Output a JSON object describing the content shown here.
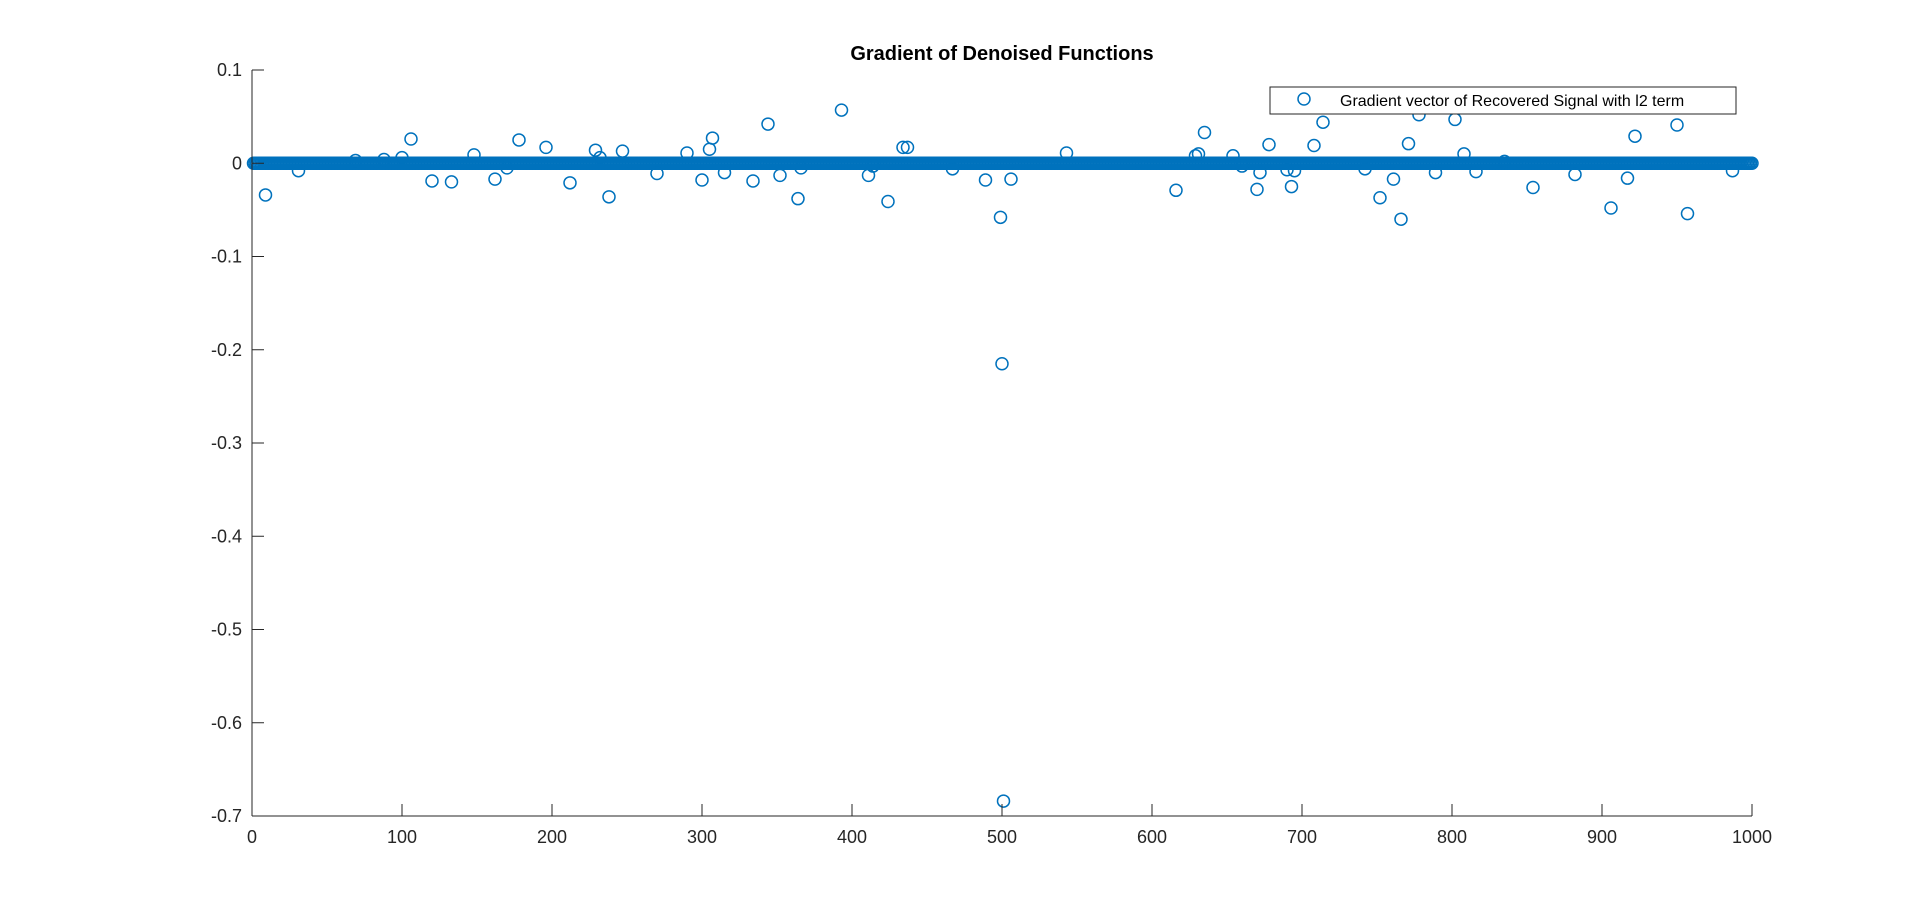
{
  "chart_data": {
    "type": "scatter",
    "title": "Gradient of Denoised Functions",
    "xlabel": "",
    "ylabel": "",
    "xlim": [
      0,
      1000
    ],
    "ylim": [
      -0.7,
      0.1
    ],
    "x_ticks": [
      0,
      100,
      200,
      300,
      400,
      500,
      600,
      700,
      800,
      900,
      1000
    ],
    "x_tick_labels": [
      "0",
      "100",
      "200",
      "300",
      "400",
      "500",
      "600",
      "700",
      "800",
      "900",
      "1000"
    ],
    "y_ticks": [
      0.1,
      0,
      -0.1,
      -0.2,
      -0.3,
      -0.4,
      -0.5,
      -0.6,
      -0.7
    ],
    "y_tick_labels": [
      "0.1",
      "0",
      "-0.1",
      "-0.2",
      "-0.3",
      "-0.4",
      "-0.5",
      "-0.6",
      "-0.7"
    ],
    "grid": false,
    "legend_position": "top-right",
    "marker": "open-circle",
    "series": [
      {
        "name": "Gradient vector of Recovered Signal with l2 term",
        "color": "#0072BD",
        "baseline": {
          "x_start": 1,
          "x_end": 1000,
          "y": 0
        },
        "outliers": [
          {
            "x": 9,
            "y": -0.034
          },
          {
            "x": 31,
            "y": -0.008
          },
          {
            "x": 69,
            "y": 0.003
          },
          {
            "x": 88,
            "y": 0.004
          },
          {
            "x": 100,
            "y": 0.006
          },
          {
            "x": 106,
            "y": 0.026
          },
          {
            "x": 120,
            "y": -0.019
          },
          {
            "x": 133,
            "y": -0.02
          },
          {
            "x": 148,
            "y": 0.009
          },
          {
            "x": 162,
            "y": -0.017
          },
          {
            "x": 170,
            "y": -0.005
          },
          {
            "x": 178,
            "y": 0.025
          },
          {
            "x": 196,
            "y": 0.017
          },
          {
            "x": 212,
            "y": -0.021
          },
          {
            "x": 229,
            "y": 0.014
          },
          {
            "x": 232,
            "y": 0.006
          },
          {
            "x": 238,
            "y": -0.036
          },
          {
            "x": 247,
            "y": 0.013
          },
          {
            "x": 270,
            "y": -0.011
          },
          {
            "x": 290,
            "y": 0.011
          },
          {
            "x": 300,
            "y": -0.018
          },
          {
            "x": 305,
            "y": 0.015
          },
          {
            "x": 307,
            "y": 0.027
          },
          {
            "x": 315,
            "y": -0.01
          },
          {
            "x": 334,
            "y": -0.019
          },
          {
            "x": 344,
            "y": 0.042
          },
          {
            "x": 352,
            "y": -0.013
          },
          {
            "x": 364,
            "y": -0.038
          },
          {
            "x": 366,
            "y": -0.005
          },
          {
            "x": 393,
            "y": 0.057
          },
          {
            "x": 411,
            "y": -0.013
          },
          {
            "x": 414,
            "y": -0.003
          },
          {
            "x": 424,
            "y": -0.041
          },
          {
            "x": 434,
            "y": 0.017
          },
          {
            "x": 437,
            "y": 0.017
          },
          {
            "x": 467,
            "y": -0.006
          },
          {
            "x": 489,
            "y": -0.018
          },
          {
            "x": 499,
            "y": -0.058
          },
          {
            "x": 500,
            "y": -0.215
          },
          {
            "x": 501,
            "y": -0.684
          },
          {
            "x": 506,
            "y": -0.017
          },
          {
            "x": 543,
            "y": 0.011
          },
          {
            "x": 616,
            "y": -0.029
          },
          {
            "x": 629,
            "y": 0.008
          },
          {
            "x": 631,
            "y": 0.01
          },
          {
            "x": 635,
            "y": 0.033
          },
          {
            "x": 654,
            "y": 0.008
          },
          {
            "x": 660,
            "y": -0.003
          },
          {
            "x": 670,
            "y": -0.028
          },
          {
            "x": 672,
            "y": -0.01
          },
          {
            "x": 678,
            "y": 0.02
          },
          {
            "x": 690,
            "y": -0.007
          },
          {
            "x": 693,
            "y": -0.025
          },
          {
            "x": 695,
            "y": -0.008
          },
          {
            "x": 708,
            "y": 0.019
          },
          {
            "x": 714,
            "y": 0.044
          },
          {
            "x": 742,
            "y": -0.006
          },
          {
            "x": 752,
            "y": -0.037
          },
          {
            "x": 761,
            "y": -0.017
          },
          {
            "x": 766,
            "y": -0.06
          },
          {
            "x": 771,
            "y": 0.021
          },
          {
            "x": 778,
            "y": 0.052
          },
          {
            "x": 789,
            "y": -0.01
          },
          {
            "x": 802,
            "y": 0.047
          },
          {
            "x": 808,
            "y": 0.01
          },
          {
            "x": 816,
            "y": -0.009
          },
          {
            "x": 835,
            "y": 0.002
          },
          {
            "x": 854,
            "y": -0.026
          },
          {
            "x": 882,
            "y": -0.012
          },
          {
            "x": 906,
            "y": -0.048
          },
          {
            "x": 917,
            "y": -0.016
          },
          {
            "x": 922,
            "y": 0.029
          },
          {
            "x": 950,
            "y": 0.041
          },
          {
            "x": 957,
            "y": -0.054
          },
          {
            "x": 987,
            "y": -0.008
          }
        ]
      }
    ]
  }
}
